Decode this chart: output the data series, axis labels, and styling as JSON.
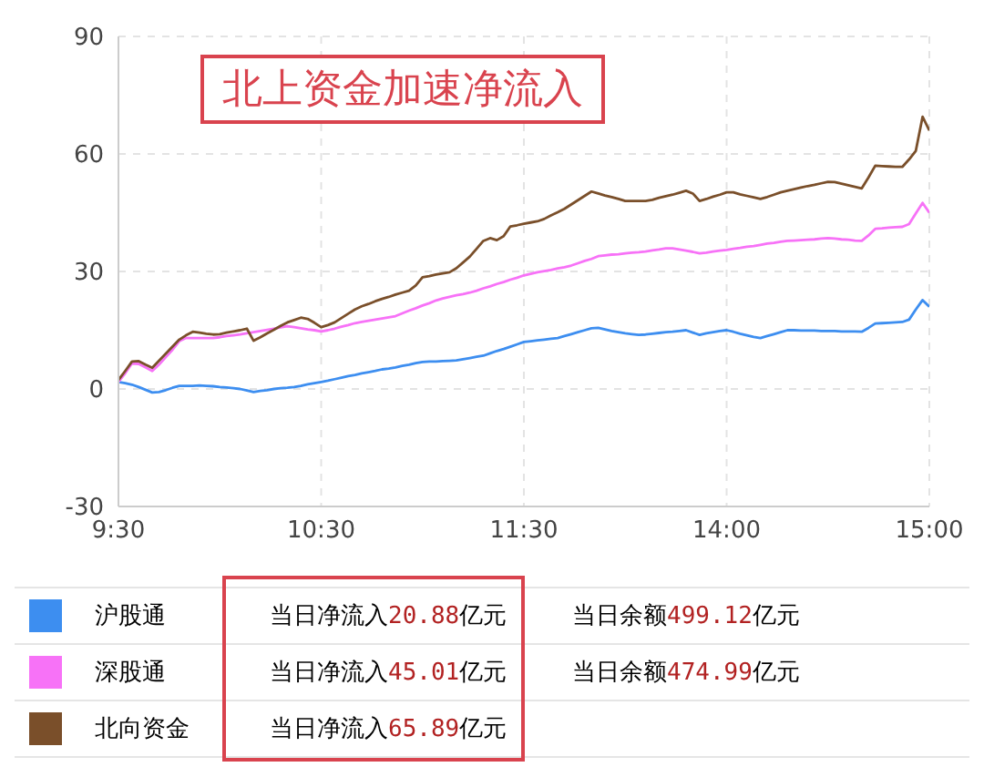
{
  "chart_data": {
    "type": "line",
    "title": "北上资金加速净流入",
    "categories": [
      "9:30",
      null,
      null,
      null,
      null,
      null,
      null,
      null,
      null,
      null,
      null,
      null,
      null,
      null,
      null,
      null,
      null,
      null,
      null,
      null,
      null,
      null,
      null,
      null,
      null,
      null,
      null,
      null,
      null,
      null,
      "10:30",
      null,
      null,
      null,
      null,
      null,
      null,
      null,
      null,
      null,
      null,
      null,
      null,
      null,
      null,
      null,
      null,
      null,
      null,
      null,
      null,
      null,
      null,
      null,
      null,
      null,
      null,
      null,
      null,
      null,
      "11:30",
      null,
      null,
      null,
      null,
      null,
      null,
      null,
      null,
      null,
      null,
      null,
      null,
      null,
      null,
      null,
      null,
      null,
      null,
      null,
      null,
      null,
      null,
      null,
      null,
      null,
      null,
      null,
      null,
      null,
      "14:00",
      null,
      null,
      null,
      null,
      null,
      null,
      null,
      null,
      null,
      null,
      null,
      null,
      null,
      null,
      null,
      null,
      null,
      null,
      null,
      null,
      null,
      null,
      null,
      null,
      null,
      null,
      null,
      null,
      null,
      "15:00"
    ],
    "ylim": [
      -30,
      90
    ],
    "yticks": [
      -30,
      0,
      30,
      60,
      90
    ],
    "grid": true,
    "legend": "bottom",
    "marker": "none",
    "line_style": "solid",
    "series": [
      {
        "name": "沪股通",
        "color": "#3d8ef0",
        "values": [
          1.8,
          1.5,
          1.1,
          0.5,
          -0.2,
          -0.9,
          -0.8,
          -0.3,
          0.3,
          0.8,
          0.8,
          0.8,
          0.9,
          0.8,
          0.7,
          0.5,
          0.4,
          0.2,
          0,
          -0.4,
          -0.8,
          -0.5,
          -0.3,
          0,
          0.2,
          0.3,
          0.5,
          0.8,
          1.2,
          1.5,
          1.8,
          2.1,
          2.5,
          2.9,
          3.3,
          3.6,
          4,
          4.3,
          4.6,
          5,
          5.2,
          5.5,
          5.9,
          6.2,
          6.6,
          6.9,
          7,
          7,
          7.1,
          7.2,
          7.3,
          7.6,
          7.9,
          8.2,
          8.5,
          9.1,
          9.7,
          10.2,
          10.8,
          11.4,
          12,
          12.2,
          12.4,
          12.6,
          12.8,
          13,
          13.5,
          14,
          14.5,
          15,
          15.5,
          15.6,
          15.2,
          14.8,
          14.5,
          14.2,
          14,
          13.8,
          13.9,
          14.1,
          14.3,
          14.5,
          14.6,
          14.8,
          15,
          14.4,
          13.8,
          14.2,
          14.5,
          14.8,
          15,
          14.6,
          14.1,
          13.7,
          13.3,
          13,
          13.5,
          14,
          14.5,
          15,
          15,
          14.9,
          14.9,
          14.9,
          14.8,
          14.8,
          14.8,
          14.7,
          14.7,
          14.7,
          14.6,
          15.6,
          16.7,
          16.8,
          16.9,
          17,
          17.1,
          17.7,
          20.3,
          22.7,
          21
        ]
      },
      {
        "name": "深股通",
        "color": "#f772f7",
        "values": [
          1.8,
          4,
          6.5,
          6.4,
          5.5,
          4.6,
          6.2,
          8.1,
          10,
          12.2,
          13,
          13,
          13,
          13,
          13,
          13.2,
          13.5,
          13.7,
          13.9,
          14.2,
          14.5,
          14.8,
          15.1,
          15.4,
          15.7,
          16,
          15.8,
          15.5,
          15.2,
          15,
          14.7,
          15,
          15.4,
          15.9,
          16.3,
          16.8,
          17.1,
          17.4,
          17.7,
          18,
          18.3,
          18.6,
          19.3,
          20,
          20.6,
          21.3,
          21.9,
          22.6,
          23.1,
          23.5,
          23.9,
          24.2,
          24.6,
          25.1,
          25.7,
          26.2,
          26.8,
          27.3,
          27.9,
          28.4,
          29,
          29.4,
          29.8,
          30.1,
          30.4,
          30.8,
          31.1,
          31.5,
          32.1,
          32.7,
          33.2,
          33.9,
          34.1,
          34.3,
          34.4,
          34.6,
          34.8,
          34.9,
          35.1,
          35.4,
          35.6,
          35.9,
          35.9,
          35.6,
          35.3,
          35,
          34.6,
          34.8,
          35.1,
          35.3,
          35.5,
          35.8,
          36,
          36.3,
          36.5,
          36.8,
          37.1,
          37.3,
          37.6,
          37.8,
          37.9,
          38,
          38.1,
          38.2,
          38.4,
          38.5,
          38.4,
          38.2,
          38.1,
          37.9,
          37.8,
          39.2,
          40.9,
          41,
          41.2,
          41.3,
          41.4,
          42.1,
          44.8,
          47.5,
          45
        ]
      },
      {
        "name": "北向资金",
        "color": "#7a4f2a",
        "values": [
          2.3,
          4.6,
          7,
          7.1,
          6.2,
          5.4,
          7.2,
          9,
          10.8,
          12.6,
          13.7,
          14.6,
          14.4,
          14.1,
          13.9,
          14,
          14.4,
          14.7,
          15,
          15.4,
          12.3,
          13.2,
          14.2,
          15.1,
          16.1,
          17,
          17.6,
          18.2,
          17.9,
          16.9,
          15.8,
          16.3,
          17,
          18.1,
          19.2,
          20.3,
          21.1,
          21.7,
          22.4,
          23,
          23.5,
          24.1,
          24.6,
          25.1,
          26.4,
          28.5,
          28.8,
          29.2,
          29.5,
          29.8,
          30.8,
          32.3,
          33.8,
          35.8,
          37.8,
          38.5,
          38,
          39,
          41.5,
          41.8,
          42.2,
          42.5,
          42.8,
          43.4,
          44.3,
          45.1,
          46,
          47.1,
          48.2,
          49.3,
          50.4,
          49.9,
          49.4,
          49,
          48.5,
          48,
          48,
          48,
          48,
          48.3,
          48.8,
          49.2,
          49.6,
          50.1,
          50.6,
          49.9,
          48,
          48.5,
          49.1,
          49.6,
          50.2,
          50.2,
          49.7,
          49.3,
          48.9,
          48.5,
          49,
          49.6,
          50.2,
          50.6,
          51,
          51.4,
          51.8,
          52.1,
          52.5,
          52.9,
          52.8,
          52.4,
          52,
          51.6,
          51.2,
          54,
          57,
          56.9,
          56.8,
          56.7,
          56.7,
          58.6,
          60.8,
          69.5,
          66
        ]
      }
    ],
    "annotations": [
      "当日净流入20.88亿元",
      "当日净流入45.01亿元",
      "当日净流入65.89亿元",
      "当日余额499.12亿元",
      "当日余额474.99亿元"
    ]
  }
}
